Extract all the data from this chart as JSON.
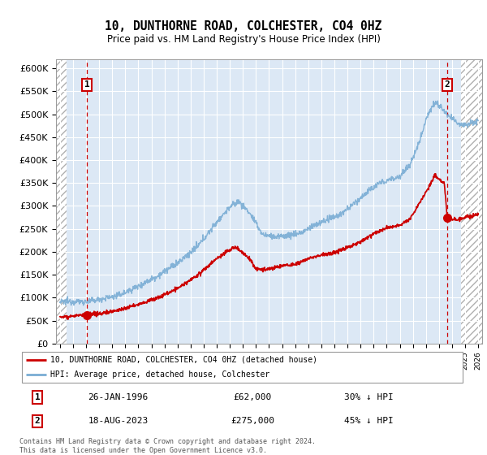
{
  "title": "10, DUNTHORNE ROAD, COLCHESTER, CO4 0HZ",
  "subtitle": "Price paid vs. HM Land Registry's House Price Index (HPI)",
  "hpi_color": "#7aadd4",
  "price_color": "#cc0000",
  "marker_color": "#cc0000",
  "bg_plot": "#dce8f5",
  "ylim": [
    0,
    620000
  ],
  "yticks": [
    0,
    50000,
    100000,
    150000,
    200000,
    250000,
    300000,
    350000,
    400000,
    450000,
    500000,
    550000,
    600000
  ],
  "xlim_start": 1993.7,
  "xlim_end": 2026.3,
  "hatch_left_end": 1994.5,
  "hatch_right_start": 2024.7,
  "point1_x": 1996.07,
  "point1_y": 62000,
  "point1_label": "1",
  "point1_date": "26-JAN-1996",
  "point1_price": "£62,000",
  "point1_hpi": "30% ↓ HPI",
  "point2_x": 2023.63,
  "point2_y": 275000,
  "point2_label": "2",
  "point2_date": "18-AUG-2023",
  "point2_price": "£275,000",
  "point2_hpi": "45% ↓ HPI",
  "legend_line1": "10, DUNTHORNE ROAD, COLCHESTER, CO4 0HZ (detached house)",
  "legend_line2": "HPI: Average price, detached house, Colchester",
  "footer": "Contains HM Land Registry data © Crown copyright and database right 2024.\nThis data is licensed under the Open Government Licence v3.0."
}
